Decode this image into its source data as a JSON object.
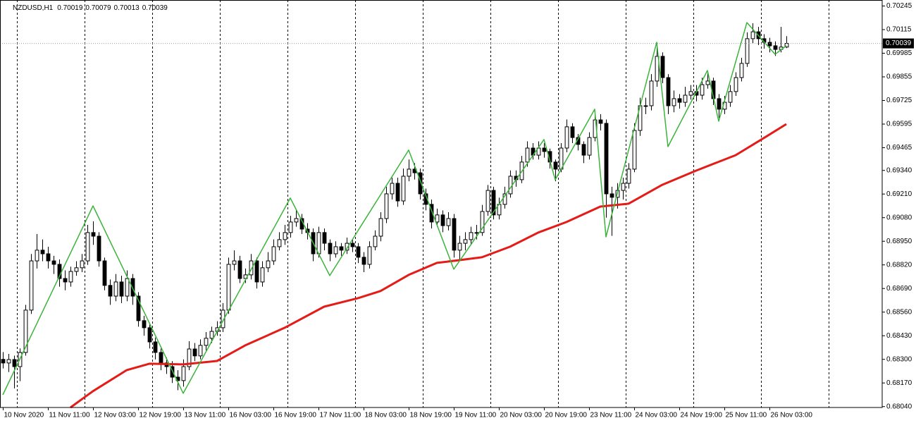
{
  "chart_data": {
    "type": "candlestick",
    "symbol": "NZDUSD,H1",
    "up_color": "#ffffff",
    "down_color": "#000000",
    "outline_color": "#000000",
    "grid_color": "#000000",
    "candles": [
      [
        0.683,
        0.6834,
        0.6825,
        0.6828
      ],
      [
        0.6828,
        0.6833,
        0.6823,
        0.68299
      ],
      [
        0.68299,
        0.6832,
        0.6814,
        0.6826
      ],
      [
        0.6826,
        0.6836,
        0.6818,
        0.68338
      ],
      [
        0.68338,
        0.686,
        0.6832,
        0.68571
      ],
      [
        0.68571,
        0.6888,
        0.6855,
        0.68842
      ],
      [
        0.68842,
        0.6899,
        0.688,
        0.68901
      ],
      [
        0.68901,
        0.6896,
        0.6884,
        0.68881
      ],
      [
        0.68881,
        0.6892,
        0.688,
        0.68842
      ],
      [
        0.68842,
        0.6887,
        0.6877,
        0.68823
      ],
      [
        0.68823,
        0.6885,
        0.687,
        0.68745
      ],
      [
        0.68745,
        0.6879,
        0.6868,
        0.68726
      ],
      [
        0.68726,
        0.6881,
        0.687,
        0.68784
      ],
      [
        0.68784,
        0.6884,
        0.6876,
        0.68804
      ],
      [
        0.68804,
        0.6888,
        0.6878,
        0.68842
      ],
      [
        0.68842,
        0.6904,
        0.6882,
        0.68998
      ],
      [
        0.68998,
        0.6906,
        0.6893,
        0.68978
      ],
      [
        0.68978,
        0.69,
        0.6881,
        0.68842
      ],
      [
        0.68842,
        0.6886,
        0.6868,
        0.68707
      ],
      [
        0.68707,
        0.6874,
        0.686,
        0.68648
      ],
      [
        0.68648,
        0.6877,
        0.6862,
        0.68726
      ],
      [
        0.68726,
        0.6876,
        0.6861,
        0.68648
      ],
      [
        0.68648,
        0.6879,
        0.6862,
        0.68745
      ],
      [
        0.68745,
        0.6877,
        0.686,
        0.68648
      ],
      [
        0.68648,
        0.6867,
        0.6848,
        0.68513
      ],
      [
        0.68513,
        0.6854,
        0.6843,
        0.68474
      ],
      [
        0.68474,
        0.685,
        0.6836,
        0.68396
      ],
      [
        0.68396,
        0.6842,
        0.683,
        0.68338
      ],
      [
        0.68338,
        0.6836,
        0.6824,
        0.6828
      ],
      [
        0.6828,
        0.6831,
        0.6822,
        0.6826
      ],
      [
        0.6826,
        0.6829,
        0.6817,
        0.68202
      ],
      [
        0.68202,
        0.6824,
        0.6813,
        0.68183
      ],
      [
        0.68183,
        0.683,
        0.6815,
        0.6826
      ],
      [
        0.6826,
        0.684,
        0.6824,
        0.68357
      ],
      [
        0.68357,
        0.6839,
        0.6829,
        0.68319
      ],
      [
        0.68319,
        0.6841,
        0.683,
        0.68377
      ],
      [
        0.68377,
        0.6845,
        0.6835,
        0.68416
      ],
      [
        0.68416,
        0.6848,
        0.6839,
        0.68454
      ],
      [
        0.68454,
        0.6851,
        0.6843,
        0.68474
      ],
      [
        0.68474,
        0.6861,
        0.6845,
        0.68571
      ],
      [
        0.68571,
        0.6886,
        0.6855,
        0.68823
      ],
      [
        0.68823,
        0.689,
        0.6879,
        0.68842
      ],
      [
        0.68842,
        0.6887,
        0.6872,
        0.68745
      ],
      [
        0.68745,
        0.688,
        0.6872,
        0.68765
      ],
      [
        0.68765,
        0.6888,
        0.6874,
        0.68842
      ],
      [
        0.68842,
        0.6886,
        0.6869,
        0.68726
      ],
      [
        0.68726,
        0.6884,
        0.687,
        0.68804
      ],
      [
        0.68804,
        0.6889,
        0.6878,
        0.68842
      ],
      [
        0.68842,
        0.6896,
        0.6882,
        0.6892
      ],
      [
        0.6892,
        0.69,
        0.689,
        0.68959
      ],
      [
        0.68959,
        0.6904,
        0.6893,
        0.68998
      ],
      [
        0.68998,
        0.6909,
        0.6897,
        0.69056
      ],
      [
        0.69056,
        0.6912,
        0.6903,
        0.69075
      ],
      [
        0.69075,
        0.691,
        0.6899,
        0.69017
      ],
      [
        0.69017,
        0.6905,
        0.6896,
        0.68998
      ],
      [
        0.68998,
        0.6902,
        0.6884,
        0.68881
      ],
      [
        0.68881,
        0.6903,
        0.6886,
        0.68998
      ],
      [
        0.68998,
        0.6902,
        0.689,
        0.68939
      ],
      [
        0.68939,
        0.6896,
        0.6884,
        0.68881
      ],
      [
        0.68881,
        0.6895,
        0.6886,
        0.6892
      ],
      [
        0.6892,
        0.6894,
        0.6887,
        0.68901
      ],
      [
        0.68901,
        0.6897,
        0.6888,
        0.68939
      ],
      [
        0.68939,
        0.6896,
        0.6889,
        0.6892
      ],
      [
        0.6892,
        0.6894,
        0.6883,
        0.68862
      ],
      [
        0.68862,
        0.6889,
        0.6878,
        0.68823
      ],
      [
        0.68823,
        0.6895,
        0.688,
        0.6892
      ],
      [
        0.6892,
        0.6901,
        0.689,
        0.68978
      ],
      [
        0.68978,
        0.6911,
        0.6895,
        0.69075
      ],
      [
        0.69075,
        0.6925,
        0.6905,
        0.69211
      ],
      [
        0.69211,
        0.693,
        0.6918,
        0.69269
      ],
      [
        0.69269,
        0.693,
        0.6914,
        0.69172
      ],
      [
        0.69172,
        0.6935,
        0.6915,
        0.69308
      ],
      [
        0.69308,
        0.694,
        0.6928,
        0.69347
      ],
      [
        0.69347,
        0.6938,
        0.6929,
        0.69327
      ],
      [
        0.69327,
        0.6935,
        0.6918,
        0.69211
      ],
      [
        0.69211,
        0.6924,
        0.6912,
        0.69153
      ],
      [
        0.69153,
        0.6918,
        0.6902,
        0.69056
      ],
      [
        0.69056,
        0.6913,
        0.6903,
        0.69095
      ],
      [
        0.69095,
        0.6912,
        0.69,
        0.69036
      ],
      [
        0.69036,
        0.6911,
        0.6901,
        0.69075
      ],
      [
        0.69075,
        0.691,
        0.6886,
        0.68901
      ],
      [
        0.68901,
        0.6898,
        0.6884,
        0.68939
      ],
      [
        0.68939,
        0.69,
        0.689,
        0.68959
      ],
      [
        0.68959,
        0.6903,
        0.6893,
        0.68998
      ],
      [
        0.68998,
        0.6904,
        0.6896,
        0.68998
      ],
      [
        0.68998,
        0.6915,
        0.6898,
        0.69114
      ],
      [
        0.69114,
        0.6926,
        0.6909,
        0.6923
      ],
      [
        0.6923,
        0.6925,
        0.6907,
        0.69095
      ],
      [
        0.69095,
        0.6919,
        0.6907,
        0.69153
      ],
      [
        0.69153,
        0.6925,
        0.6913,
        0.69211
      ],
      [
        0.69211,
        0.6934,
        0.6919,
        0.69308
      ],
      [
        0.69308,
        0.6934,
        0.6925,
        0.69289
      ],
      [
        0.69289,
        0.6942,
        0.6927,
        0.69386
      ],
      [
        0.69386,
        0.695,
        0.6936,
        0.69463
      ],
      [
        0.69463,
        0.6949,
        0.694,
        0.69424
      ],
      [
        0.69424,
        0.695,
        0.694,
        0.69463
      ],
      [
        0.69463,
        0.6949,
        0.6941,
        0.69444
      ],
      [
        0.69444,
        0.6946,
        0.6935,
        0.69386
      ],
      [
        0.69386,
        0.694,
        0.6928,
        0.69347
      ],
      [
        0.69347,
        0.6949,
        0.6933,
        0.69463
      ],
      [
        0.69463,
        0.6962,
        0.6944,
        0.6958
      ],
      [
        0.6958,
        0.696,
        0.6949,
        0.69521
      ],
      [
        0.69521,
        0.6954,
        0.6945,
        0.69483
      ],
      [
        0.69483,
        0.695,
        0.6938,
        0.69424
      ],
      [
        0.69424,
        0.6955,
        0.694,
        0.69521
      ],
      [
        0.69521,
        0.6966,
        0.695,
        0.69618
      ],
      [
        0.69618,
        0.6965,
        0.6956,
        0.69599
      ],
      [
        0.69599,
        0.6962,
        0.6908,
        0.69211
      ],
      [
        0.69211,
        0.6925,
        0.6898,
        0.69192
      ],
      [
        0.69192,
        0.6927,
        0.6913,
        0.6923
      ],
      [
        0.6923,
        0.693,
        0.6918,
        0.69269
      ],
      [
        0.69269,
        0.6938,
        0.6924,
        0.69347
      ],
      [
        0.69347,
        0.696,
        0.6933,
        0.6956
      ],
      [
        0.6956,
        0.6974,
        0.6953,
        0.69696
      ],
      [
        0.69696,
        0.6974,
        0.6965,
        0.69696
      ],
      [
        0.69696,
        0.6987,
        0.6967,
        0.69832
      ],
      [
        0.69832,
        0.7002,
        0.698,
        0.69968
      ],
      [
        0.69968,
        0.6999,
        0.6982,
        0.69851
      ],
      [
        0.69851,
        0.6987,
        0.6965,
        0.69696
      ],
      [
        0.69696,
        0.6978,
        0.6966,
        0.69735
      ],
      [
        0.69735,
        0.6976,
        0.6968,
        0.69715
      ],
      [
        0.69715,
        0.698,
        0.6969,
        0.69754
      ],
      [
        0.69754,
        0.6981,
        0.6973,
        0.69774
      ],
      [
        0.69774,
        0.6981,
        0.6972,
        0.69754
      ],
      [
        0.69754,
        0.6985,
        0.6973,
        0.69812
      ],
      [
        0.69812,
        0.6988,
        0.6979,
        0.69832
      ],
      [
        0.69832,
        0.6985,
        0.697,
        0.69735
      ],
      [
        0.69735,
        0.6976,
        0.6963,
        0.69677
      ],
      [
        0.69677,
        0.6975,
        0.6965,
        0.69715
      ],
      [
        0.69715,
        0.6981,
        0.6969,
        0.69774
      ],
      [
        0.69774,
        0.6988,
        0.6975,
        0.69851
      ],
      [
        0.69851,
        0.6996,
        0.6983,
        0.69929
      ],
      [
        0.69929,
        0.701,
        0.6991,
        0.70065
      ],
      [
        0.70065,
        0.7015,
        0.7004,
        0.70103
      ],
      [
        0.70103,
        0.7013,
        0.7003,
        0.70065
      ],
      [
        0.70065,
        0.7009,
        0.7001,
        0.70045
      ],
      [
        0.70045,
        0.7007,
        0.6999,
        0.70026
      ],
      [
        0.70026,
        0.7005,
        0.6997,
        0.70006
      ],
      [
        0.70006,
        0.7013,
        0.6999,
        0.70019
      ],
      [
        0.70019,
        0.70079,
        0.70013,
        0.70039
      ]
    ],
    "overlays": [
      {
        "type": "line",
        "color": "#e41b17",
        "width": 3,
        "x": [
          12,
          16,
          22,
          26,
          32,
          38,
          43,
          50,
          57,
          63,
          67,
          72,
          77,
          81,
          85,
          90,
          95,
          100,
          106,
          111,
          117,
          123,
          130,
          135,
          139
        ],
        "values": [
          0.68035,
          0.68125,
          0.68241,
          0.68276,
          0.68272,
          0.68291,
          0.68377,
          0.68474,
          0.6859,
          0.68637,
          0.68676,
          0.68765,
          0.68831,
          0.68846,
          0.68862,
          0.6892,
          0.68998,
          0.69056,
          0.69141,
          0.69157,
          0.69261,
          0.69339,
          0.69424,
          0.69518,
          0.69595
        ]
      },
      {
        "type": "line",
        "color": "#3cb43c",
        "width": 1.5,
        "x": [
          0,
          16,
          32,
          51,
          58,
          72,
          80,
          96,
          98,
          105,
          107,
          116,
          118,
          125,
          127,
          132,
          137,
          139
        ],
        "values": [
          0.68105,
          0.69145,
          0.68113,
          0.69188,
          0.68761,
          0.69452,
          0.68796,
          0.6951,
          0.69289,
          0.69677,
          0.68974,
          0.70045,
          0.69471,
          0.6989,
          0.69611,
          0.70154,
          0.69979,
          0.70026
        ]
      }
    ],
    "xlim": [
      -0.5,
      156
    ],
    "xticks": [
      {
        "value": 0,
        "label": "10 Nov 2020"
      },
      {
        "value": 8,
        "label": "11 Nov 11:00"
      },
      {
        "value": 16,
        "label": "12 Nov 03:00"
      },
      {
        "value": 24,
        "label": "12 Nov 19:00"
      },
      {
        "value": 32,
        "label": "13 Nov 11:00"
      },
      {
        "value": 40,
        "label": "16 Nov 03:00"
      },
      {
        "value": 48,
        "label": "16 Nov 19:00"
      },
      {
        "value": 56,
        "label": "17 Nov 11:00"
      },
      {
        "value": 64,
        "label": "18 Nov 03:00"
      },
      {
        "value": 72,
        "label": "18 Nov 19:00"
      },
      {
        "value": 80,
        "label": "19 Nov 11:00"
      },
      {
        "value": 88,
        "label": "20 Nov 03:00"
      },
      {
        "value": 96,
        "label": "20 Nov 19:00"
      },
      {
        "value": 104,
        "label": "23 Nov 11:00"
      },
      {
        "value": 112,
        "label": "24 Nov 03:00"
      },
      {
        "value": 120,
        "label": "24 Nov 19:00"
      },
      {
        "value": 128,
        "label": "25 Nov 11:00"
      },
      {
        "value": 136,
        "label": "26 Nov 03:00"
      }
    ],
    "vgrid": [
      2.5,
      14.5,
      26.5,
      38.5,
      50.5,
      62.5,
      74.5,
      86.5,
      98.5,
      110.5,
      122.5,
      134.5,
      146.5
    ],
    "ylim": [
      0.68035,
      0.70278
    ],
    "yticks": [
      {
        "value": 0.70245,
        "label": "0.70245"
      },
      {
        "value": 0.70115,
        "label": "0.70115"
      },
      {
        "value": 0.69985,
        "label": "0.69985"
      },
      {
        "value": 0.69855,
        "label": "0.69855"
      },
      {
        "value": 0.69725,
        "label": "0.69725"
      },
      {
        "value": 0.69595,
        "label": "0.69595"
      },
      {
        "value": 0.69465,
        "label": "0.69465"
      },
      {
        "value": 0.6934,
        "label": "0.69340"
      },
      {
        "value": 0.6921,
        "label": "0.69210"
      },
      {
        "value": 0.6908,
        "label": "0.69080"
      },
      {
        "value": 0.6895,
        "label": "0.68950"
      },
      {
        "value": 0.6882,
        "label": "0.68820"
      },
      {
        "value": 0.6869,
        "label": "0.68690"
      },
      {
        "value": 0.6856,
        "label": "0.68560"
      },
      {
        "value": 0.6843,
        "label": "0.68430"
      },
      {
        "value": 0.683,
        "label": "0.68300"
      },
      {
        "value": 0.6817,
        "label": "0.68170"
      },
      {
        "value": 0.6804,
        "label": "0.68040"
      }
    ]
  }
}
